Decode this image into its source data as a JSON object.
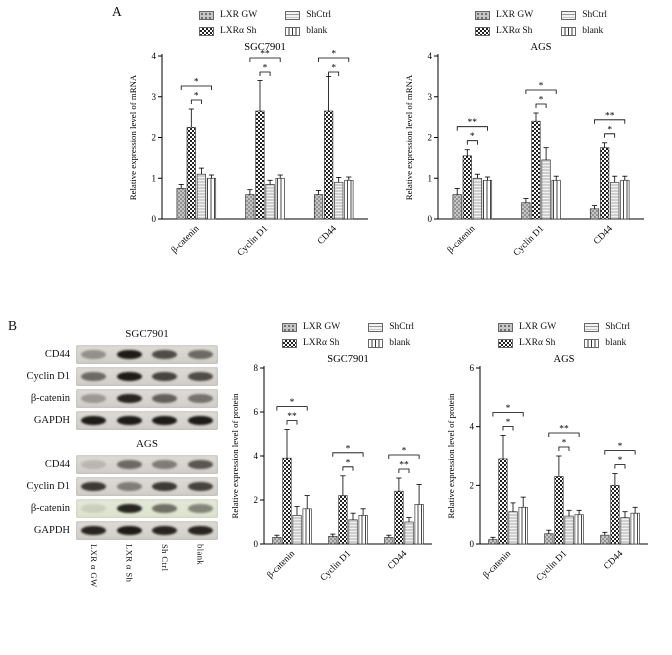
{
  "panels": {
    "a": "A",
    "b": "B"
  },
  "legend_items": [
    {
      "label": "LXR GW",
      "pattern": "dots"
    },
    {
      "label": "LXRα  Sh",
      "pattern": "checker"
    },
    {
      "label": "ShCtrl",
      "pattern": "hlines"
    },
    {
      "label": "blank",
      "pattern": "vlines"
    }
  ],
  "chart_data": [
    {
      "id": "sgc7901-mrna",
      "type": "bar",
      "title": "SGC7901",
      "ylabel": "Relative expression level of  mRNA",
      "xlabel": "",
      "ylim": [
        0,
        4
      ],
      "yticks": [
        0,
        1,
        2,
        3,
        4
      ],
      "grid": false,
      "legend_position": "top",
      "categories": [
        "β-catenin",
        "Cyclin D1",
        "CD44"
      ],
      "series": [
        {
          "name": "LXR GW",
          "pattern": "dots",
          "values": [
            0.75,
            0.6,
            0.6
          ],
          "errors": [
            0.1,
            0.12,
            0.1
          ]
        },
        {
          "name": "LXRα Sh",
          "pattern": "checker",
          "values": [
            2.25,
            2.65,
            2.65
          ],
          "errors": [
            0.45,
            0.75,
            0.85
          ]
        },
        {
          "name": "ShCtrl",
          "pattern": "hlines",
          "values": [
            1.1,
            0.85,
            0.9
          ],
          "errors": [
            0.15,
            0.1,
            0.12
          ]
        },
        {
          "name": "blank",
          "pattern": "vlines",
          "values": [
            1.0,
            1.0,
            0.95
          ],
          "errors": [
            0.08,
            0.08,
            0.08
          ]
        }
      ],
      "significance": [
        {
          "outer": "*",
          "inner": "*"
        },
        {
          "outer": "**",
          "inner": "*"
        },
        {
          "outer": "*",
          "inner": "*"
        }
      ]
    },
    {
      "id": "ags-mrna",
      "type": "bar",
      "title": "AGS",
      "ylabel": "Relative expression level of mRNA",
      "xlabel": "",
      "ylim": [
        0,
        4
      ],
      "yticks": [
        0,
        1,
        2,
        3,
        4
      ],
      "grid": false,
      "legend_position": "top",
      "categories": [
        "β-catenin",
        "Cyclin D1",
        "CD44"
      ],
      "series": [
        {
          "name": "LXR GW",
          "pattern": "dots",
          "values": [
            0.6,
            0.4,
            0.25
          ],
          "errors": [
            0.15,
            0.1,
            0.08
          ]
        },
        {
          "name": "LXRα Sh",
          "pattern": "checker",
          "values": [
            1.55,
            2.4,
            1.75
          ],
          "errors": [
            0.15,
            0.2,
            0.12
          ]
        },
        {
          "name": "ShCtrl",
          "pattern": "hlines",
          "values": [
            1.0,
            1.45,
            0.9
          ],
          "errors": [
            0.1,
            0.3,
            0.15
          ]
        },
        {
          "name": "blank",
          "pattern": "vlines",
          "values": [
            0.95,
            0.95,
            0.95
          ],
          "errors": [
            0.08,
            0.1,
            0.1
          ]
        }
      ],
      "significance": [
        {
          "outer": "**",
          "inner": "*"
        },
        {
          "outer": "*",
          "inner": "*"
        },
        {
          "outer": "**",
          "inner": "*"
        }
      ]
    },
    {
      "id": "sgc7901-protein",
      "type": "bar",
      "title": "SGC7901",
      "ylabel": "Relative expression level of protein",
      "xlabel": "",
      "ylim": [
        0,
        8
      ],
      "yticks": [
        0,
        2,
        4,
        6,
        8
      ],
      "grid": false,
      "legend_position": "top",
      "categories": [
        "β-catenin",
        "Cyclin D1",
        "CD44"
      ],
      "series": [
        {
          "name": "LXR GW",
          "pattern": "dots",
          "values": [
            0.3,
            0.35,
            0.3
          ],
          "errors": [
            0.1,
            0.1,
            0.1
          ]
        },
        {
          "name": "LXRα Sh",
          "pattern": "checker",
          "values": [
            3.9,
            2.2,
            2.4
          ],
          "errors": [
            1.3,
            0.9,
            0.6
          ]
        },
        {
          "name": "ShCtrl",
          "pattern": "hlines",
          "values": [
            1.3,
            1.1,
            1.0
          ],
          "errors": [
            0.4,
            0.3,
            0.2
          ]
        },
        {
          "name": "blank",
          "pattern": "vlines",
          "values": [
            1.6,
            1.3,
            1.8
          ],
          "errors": [
            0.6,
            0.3,
            0.9
          ]
        }
      ],
      "significance": [
        {
          "outer": "*",
          "inner": "**"
        },
        {
          "outer": "*",
          "inner": "*"
        },
        {
          "outer": "*",
          "inner": "**"
        }
      ]
    },
    {
      "id": "ags-protein",
      "type": "bar",
      "title": "AGS",
      "ylabel": "Relative expression level of protein",
      "xlabel": "",
      "ylim": [
        0,
        6
      ],
      "yticks": [
        0,
        2,
        4,
        6
      ],
      "grid": false,
      "legend_position": "top",
      "categories": [
        "β-catenin",
        "Cyclin D1",
        "CD44"
      ],
      "series": [
        {
          "name": "LXR GW",
          "pattern": "dots",
          "values": [
            0.15,
            0.35,
            0.3
          ],
          "errors": [
            0.08,
            0.12,
            0.1
          ]
        },
        {
          "name": "LXRα Sh",
          "pattern": "checker",
          "values": [
            2.9,
            2.3,
            2.0
          ],
          "errors": [
            0.8,
            0.7,
            0.4
          ]
        },
        {
          "name": "ShCtrl",
          "pattern": "hlines",
          "values": [
            1.1,
            0.95,
            0.9
          ],
          "errors": [
            0.3,
            0.2,
            0.2
          ]
        },
        {
          "name": "blank",
          "pattern": "vlines",
          "values": [
            1.25,
            1.0,
            1.05
          ],
          "errors": [
            0.35,
            0.15,
            0.2
          ]
        }
      ],
      "significance": [
        {
          "outer": "*",
          "inner": "*"
        },
        {
          "outer": "**",
          "inner": "*"
        },
        {
          "outer": "*",
          "inner": "*"
        }
      ]
    }
  ],
  "blots": {
    "lane_labels": [
      "LXR α GW",
      "LXR α Sh",
      "Sh Ctrl",
      "blank"
    ],
    "groups": [
      {
        "cell_line": "SGC7901",
        "rows": [
          {
            "protein": "CD44",
            "tint": false,
            "intensities": [
              0.35,
              0.95,
              0.7,
              0.55
            ]
          },
          {
            "protein": "Cyclin D1",
            "tint": false,
            "intensities": [
              0.55,
              0.95,
              0.75,
              0.7
            ]
          },
          {
            "protein": "β-catenin",
            "tint": false,
            "intensities": [
              0.3,
              0.9,
              0.6,
              0.5
            ]
          },
          {
            "protein": "GAPDH",
            "tint": false,
            "intensities": [
              0.95,
              0.95,
              0.95,
              0.95
            ]
          }
        ]
      },
      {
        "cell_line": "AGS",
        "rows": [
          {
            "protein": "CD44",
            "tint": false,
            "intensities": [
              0.15,
              0.55,
              0.45,
              0.65
            ]
          },
          {
            "protein": "Cyclin D1",
            "tint": false,
            "intensities": [
              0.8,
              0.45,
              0.8,
              0.75
            ]
          },
          {
            "protein": "β-catenin",
            "tint": true,
            "intensities": [
              0.1,
              0.9,
              0.55,
              0.45
            ]
          },
          {
            "protein": "GAPDH",
            "tint": false,
            "intensities": [
              0.9,
              0.95,
              0.9,
              0.9
            ]
          }
        ]
      }
    ]
  }
}
